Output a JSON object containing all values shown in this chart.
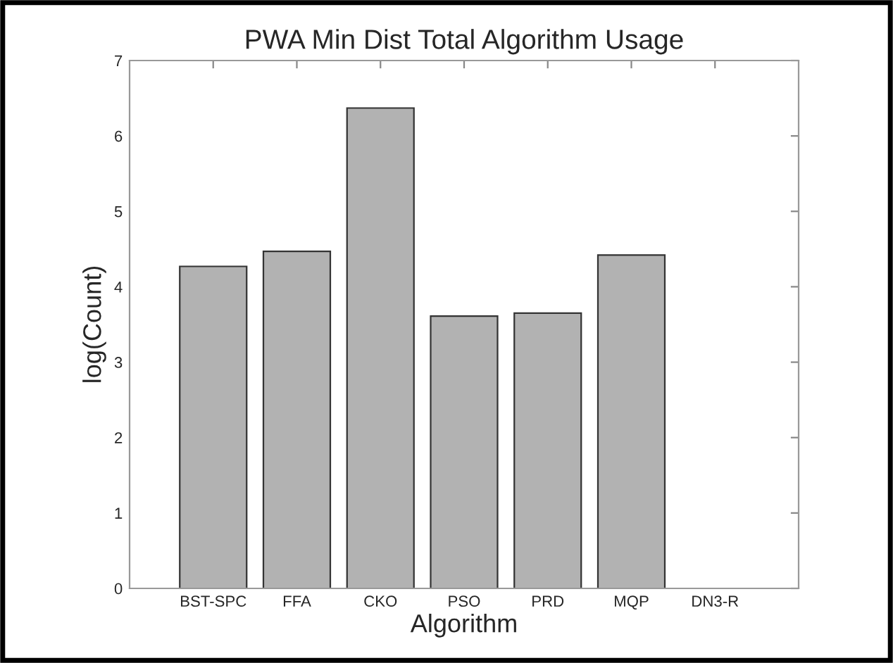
{
  "chart_data": {
    "type": "bar",
    "title": "PWA Min Dist Total Algorithm Usage",
    "xlabel": "Algorithm",
    "ylabel": "log(Count)",
    "categories": [
      "BST-SPC",
      "FFA",
      "CKO",
      "PSO",
      "PRD",
      "MQP",
      "DN3-R"
    ],
    "values": [
      4.27,
      4.47,
      6.37,
      3.61,
      3.65,
      4.42,
      null
    ],
    "color": "#b2b2b2",
    "ylim": [
      0,
      7
    ],
    "yticks": [
      0,
      1,
      2,
      3,
      4,
      5,
      6,
      7
    ],
    "grid": false
  }
}
